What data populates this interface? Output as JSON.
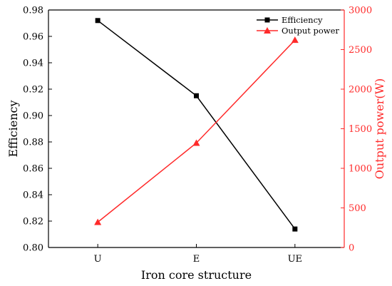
{
  "chart_data": {
    "type": "line",
    "categories": [
      "U",
      "E",
      "UE"
    ],
    "xlabel": "Iron core structure",
    "ylabel_left": "Efficiency",
    "ylabel_right": "Output power(W)",
    "ylim_left": [
      0.8,
      0.98
    ],
    "yticks_left": [
      "0.80",
      "0.82",
      "0.84",
      "0.86",
      "0.88",
      "0.90",
      "0.92",
      "0.94",
      "0.96",
      "0.98"
    ],
    "ylim_right": [
      0,
      3000
    ],
    "yticks_right": [
      "0",
      "500",
      "1000",
      "1500",
      "2000",
      "2500",
      "3000"
    ],
    "legend_position": "top-right",
    "series": [
      {
        "name": "Efficiency",
        "axis": "left",
        "values": [
          0.972,
          0.915,
          0.814
        ],
        "color": "#000000",
        "marker": "square"
      },
      {
        "name": "Output power",
        "axis": "right",
        "values": [
          320,
          1320,
          2620
        ],
        "color": "#ff2a2a",
        "marker": "triangle"
      }
    ]
  }
}
